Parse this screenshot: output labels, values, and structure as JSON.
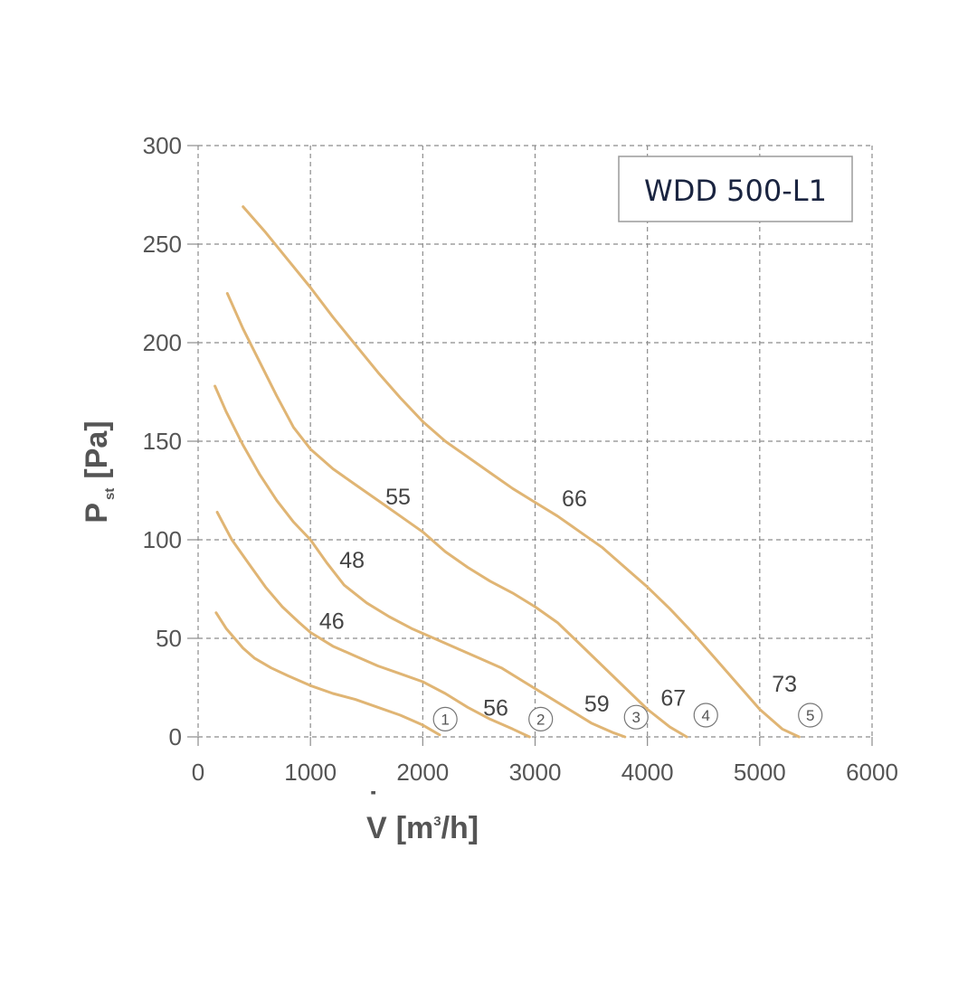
{
  "chart_data": {
    "type": "line",
    "title_box": "WDD 500-L1",
    "xlabel": {
      "main": "V",
      "dot": "˙",
      "unit": "[m",
      "sup": "3",
      "tail": "/h]"
    },
    "ylabel": {
      "main": "P",
      "sub": "st",
      "unit": "[Pa]"
    },
    "xlim": [
      0,
      6000
    ],
    "ylim": [
      0,
      300
    ],
    "xticks": [
      0,
      1000,
      2000,
      3000,
      4000,
      5000,
      6000
    ],
    "yticks": [
      0,
      50,
      100,
      150,
      200,
      250,
      300
    ],
    "xtick_labels": [
      "0",
      "1000",
      "2000",
      "3000",
      "4000",
      "5000",
      "6000"
    ],
    "ytick_labels": [
      "0",
      "50",
      "100",
      "150",
      "200",
      "250",
      "300"
    ],
    "grid": true,
    "line_color": "#e0b574",
    "grid_color": "#8c8c8c",
    "series": [
      {
        "name": "1",
        "points": [
          [
            160,
            63
          ],
          [
            250,
            55
          ],
          [
            400,
            45
          ],
          [
            500,
            40
          ],
          [
            650,
            35
          ],
          [
            800,
            31
          ],
          [
            1000,
            26
          ],
          [
            1200,
            22
          ],
          [
            1400,
            19
          ],
          [
            1600,
            15
          ],
          [
            1800,
            11
          ],
          [
            2000,
            6
          ],
          [
            2150,
            1
          ]
        ]
      },
      {
        "name": "2",
        "points": [
          [
            170,
            114
          ],
          [
            300,
            100
          ],
          [
            450,
            88
          ],
          [
            600,
            76
          ],
          [
            750,
            66
          ],
          [
            900,
            58
          ],
          [
            1000,
            53
          ],
          [
            1200,
            46
          ],
          [
            1400,
            41
          ],
          [
            1600,
            36
          ],
          [
            1800,
            32
          ],
          [
            2000,
            28
          ],
          [
            2200,
            22
          ],
          [
            2400,
            15
          ],
          [
            2600,
            9
          ],
          [
            2800,
            4
          ],
          [
            2950,
            0
          ]
        ]
      },
      {
        "name": "3",
        "points": [
          [
            150,
            178
          ],
          [
            250,
            165
          ],
          [
            400,
            148
          ],
          [
            550,
            133
          ],
          [
            700,
            120
          ],
          [
            850,
            109
          ],
          [
            1000,
            100
          ],
          [
            1150,
            88
          ],
          [
            1300,
            77
          ],
          [
            1500,
            68
          ],
          [
            1700,
            61
          ],
          [
            1900,
            55
          ],
          [
            2100,
            50
          ],
          [
            2300,
            45
          ],
          [
            2500,
            40
          ],
          [
            2700,
            35
          ],
          [
            2900,
            28
          ],
          [
            3100,
            21
          ],
          [
            3300,
            14
          ],
          [
            3500,
            7
          ],
          [
            3700,
            2
          ],
          [
            3800,
            0
          ]
        ]
      },
      {
        "name": "4",
        "points": [
          [
            260,
            225
          ],
          [
            400,
            207
          ],
          [
            550,
            190
          ],
          [
            700,
            173
          ],
          [
            850,
            157
          ],
          [
            1000,
            146
          ],
          [
            1200,
            136
          ],
          [
            1400,
            128
          ],
          [
            1600,
            120
          ],
          [
            1800,
            112
          ],
          [
            2000,
            104
          ],
          [
            2200,
            94
          ],
          [
            2400,
            86
          ],
          [
            2600,
            79
          ],
          [
            2800,
            73
          ],
          [
            3000,
            66
          ],
          [
            3200,
            58
          ],
          [
            3400,
            47
          ],
          [
            3600,
            36
          ],
          [
            3800,
            25
          ],
          [
            4000,
            14
          ],
          [
            4200,
            5
          ],
          [
            4350,
            0
          ]
        ]
      },
      {
        "name": "5",
        "points": [
          [
            400,
            269
          ],
          [
            600,
            256
          ],
          [
            800,
            242
          ],
          [
            1000,
            228
          ],
          [
            1200,
            213
          ],
          [
            1400,
            199
          ],
          [
            1600,
            185
          ],
          [
            1800,
            172
          ],
          [
            2000,
            160
          ],
          [
            2200,
            150
          ],
          [
            2400,
            142
          ],
          [
            2600,
            134
          ],
          [
            2800,
            126
          ],
          [
            3000,
            119
          ],
          [
            3200,
            112
          ],
          [
            3400,
            104
          ],
          [
            3600,
            96
          ],
          [
            3800,
            86
          ],
          [
            4000,
            76
          ],
          [
            4200,
            65
          ],
          [
            4400,
            53
          ],
          [
            4600,
            40
          ],
          [
            4800,
            27
          ],
          [
            5000,
            14
          ],
          [
            5200,
            4
          ],
          [
            5350,
            0
          ]
        ]
      }
    ],
    "annotations": [
      {
        "text": "46",
        "x": 1190,
        "y": 59
      },
      {
        "text": "48",
        "x": 1370,
        "y": 90
      },
      {
        "text": "55",
        "x": 1780,
        "y": 122
      },
      {
        "text": "66",
        "x": 3350,
        "y": 121
      },
      {
        "text": "56",
        "x": 2650,
        "y": 15
      },
      {
        "text": "59",
        "x": 3550,
        "y": 17
      },
      {
        "text": "67",
        "x": 4230,
        "y": 20
      },
      {
        "text": "73",
        "x": 5220,
        "y": 27
      }
    ],
    "end_markers": [
      {
        "text": "1",
        "x": 2200,
        "y": 9
      },
      {
        "text": "2",
        "x": 3050,
        "y": 9
      },
      {
        "text": "3",
        "x": 3900,
        "y": 10
      },
      {
        "text": "4",
        "x": 4520,
        "y": 11
      },
      {
        "text": "5",
        "x": 5450,
        "y": 11
      }
    ]
  }
}
